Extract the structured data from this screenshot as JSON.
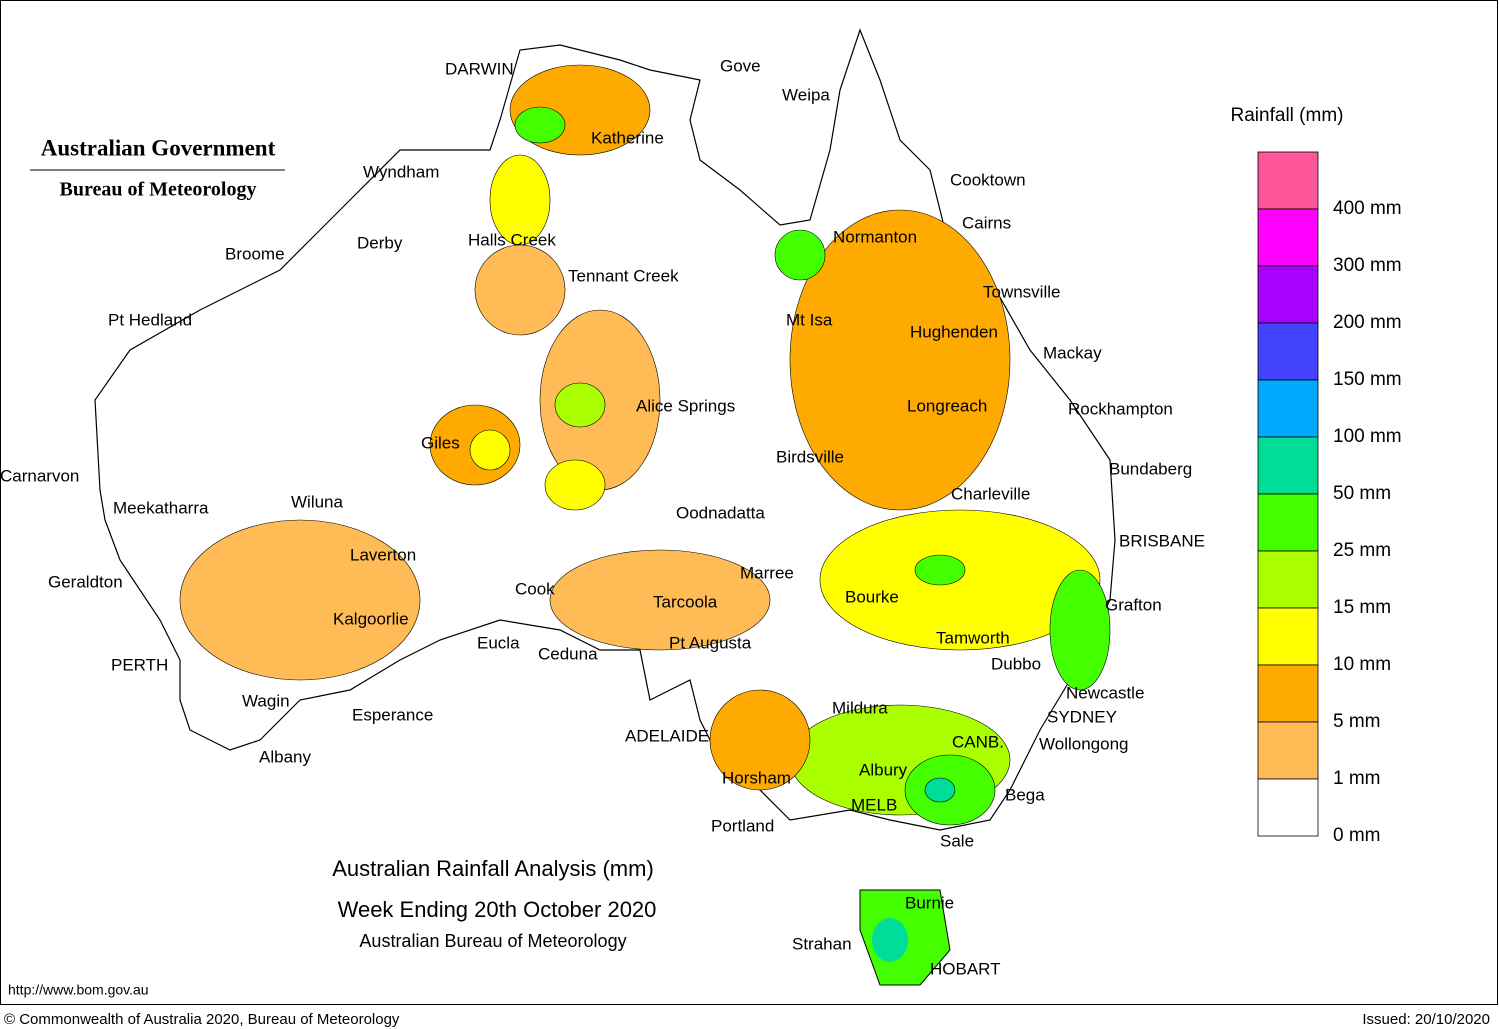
{
  "header": {
    "government": "Australian Government",
    "agency": "Bureau of Meteorology"
  },
  "title": {
    "line1": "Australian Rainfall Analysis (mm)",
    "line2": "Week Ending 20th October 2020",
    "line3": "Australian Bureau of Meteorology"
  },
  "legend": {
    "title": "Rainfall (mm)",
    "colors": [
      "#ff5599",
      "#ff00ff",
      "#aa00ff",
      "#4444ff",
      "#00aaff",
      "#00dd99",
      "#44ff00",
      "#aaff00",
      "#ffff00",
      "#ffaa00",
      "#ffbb55",
      "#ffffff"
    ],
    "labels": [
      "400 mm",
      "300 mm",
      "200 mm",
      "150 mm",
      "100 mm",
      "50 mm",
      "25 mm",
      "15 mm",
      "10 mm",
      "5 mm",
      "1 mm",
      "0 mm"
    ]
  },
  "places": [
    "DARWIN",
    "Gove",
    "Weipa",
    "Katherine",
    "Wyndham",
    "Cooktown",
    "Cairns",
    "Halls Creek",
    "Normanton",
    "Broome",
    "Derby",
    "Tennant Creek",
    "Townsville",
    "Pt Hedland",
    "Mt Isa",
    "Hughenden",
    "Mackay",
    "Alice Springs",
    "Longreach",
    "Rockhampton",
    "Giles",
    "Birdsville",
    "Bundaberg",
    "Carnarvon",
    "Charleville",
    "Wiluna",
    "Meekatharra",
    "Oodnadatta",
    "BRISBANE",
    "Laverton",
    "Marree",
    "Geraldton",
    "Cook",
    "Bourke",
    "Tarcoola",
    "Grafton",
    "Kalgoorlie",
    "Tamworth",
    "Eucla",
    "Pt Augusta",
    "Ceduna",
    "Dubbo",
    "PERTH",
    "Newcastle",
    "Wagin",
    "Mildura",
    "Esperance",
    "SYDNEY",
    "ADELAIDE",
    "CANB.",
    "Wollongong",
    "Albany",
    "Albury",
    "Horsham",
    "Bega",
    "MELB",
    "Portland",
    "Sale",
    "Burnie",
    "Strahan",
    "HOBART"
  ],
  "footer": {
    "url": "http://www.bom.gov.au",
    "copyright": "© Commonwealth of Australia 2020, Bureau of Meteorology",
    "issued": "Issued: 20/10/2020"
  }
}
